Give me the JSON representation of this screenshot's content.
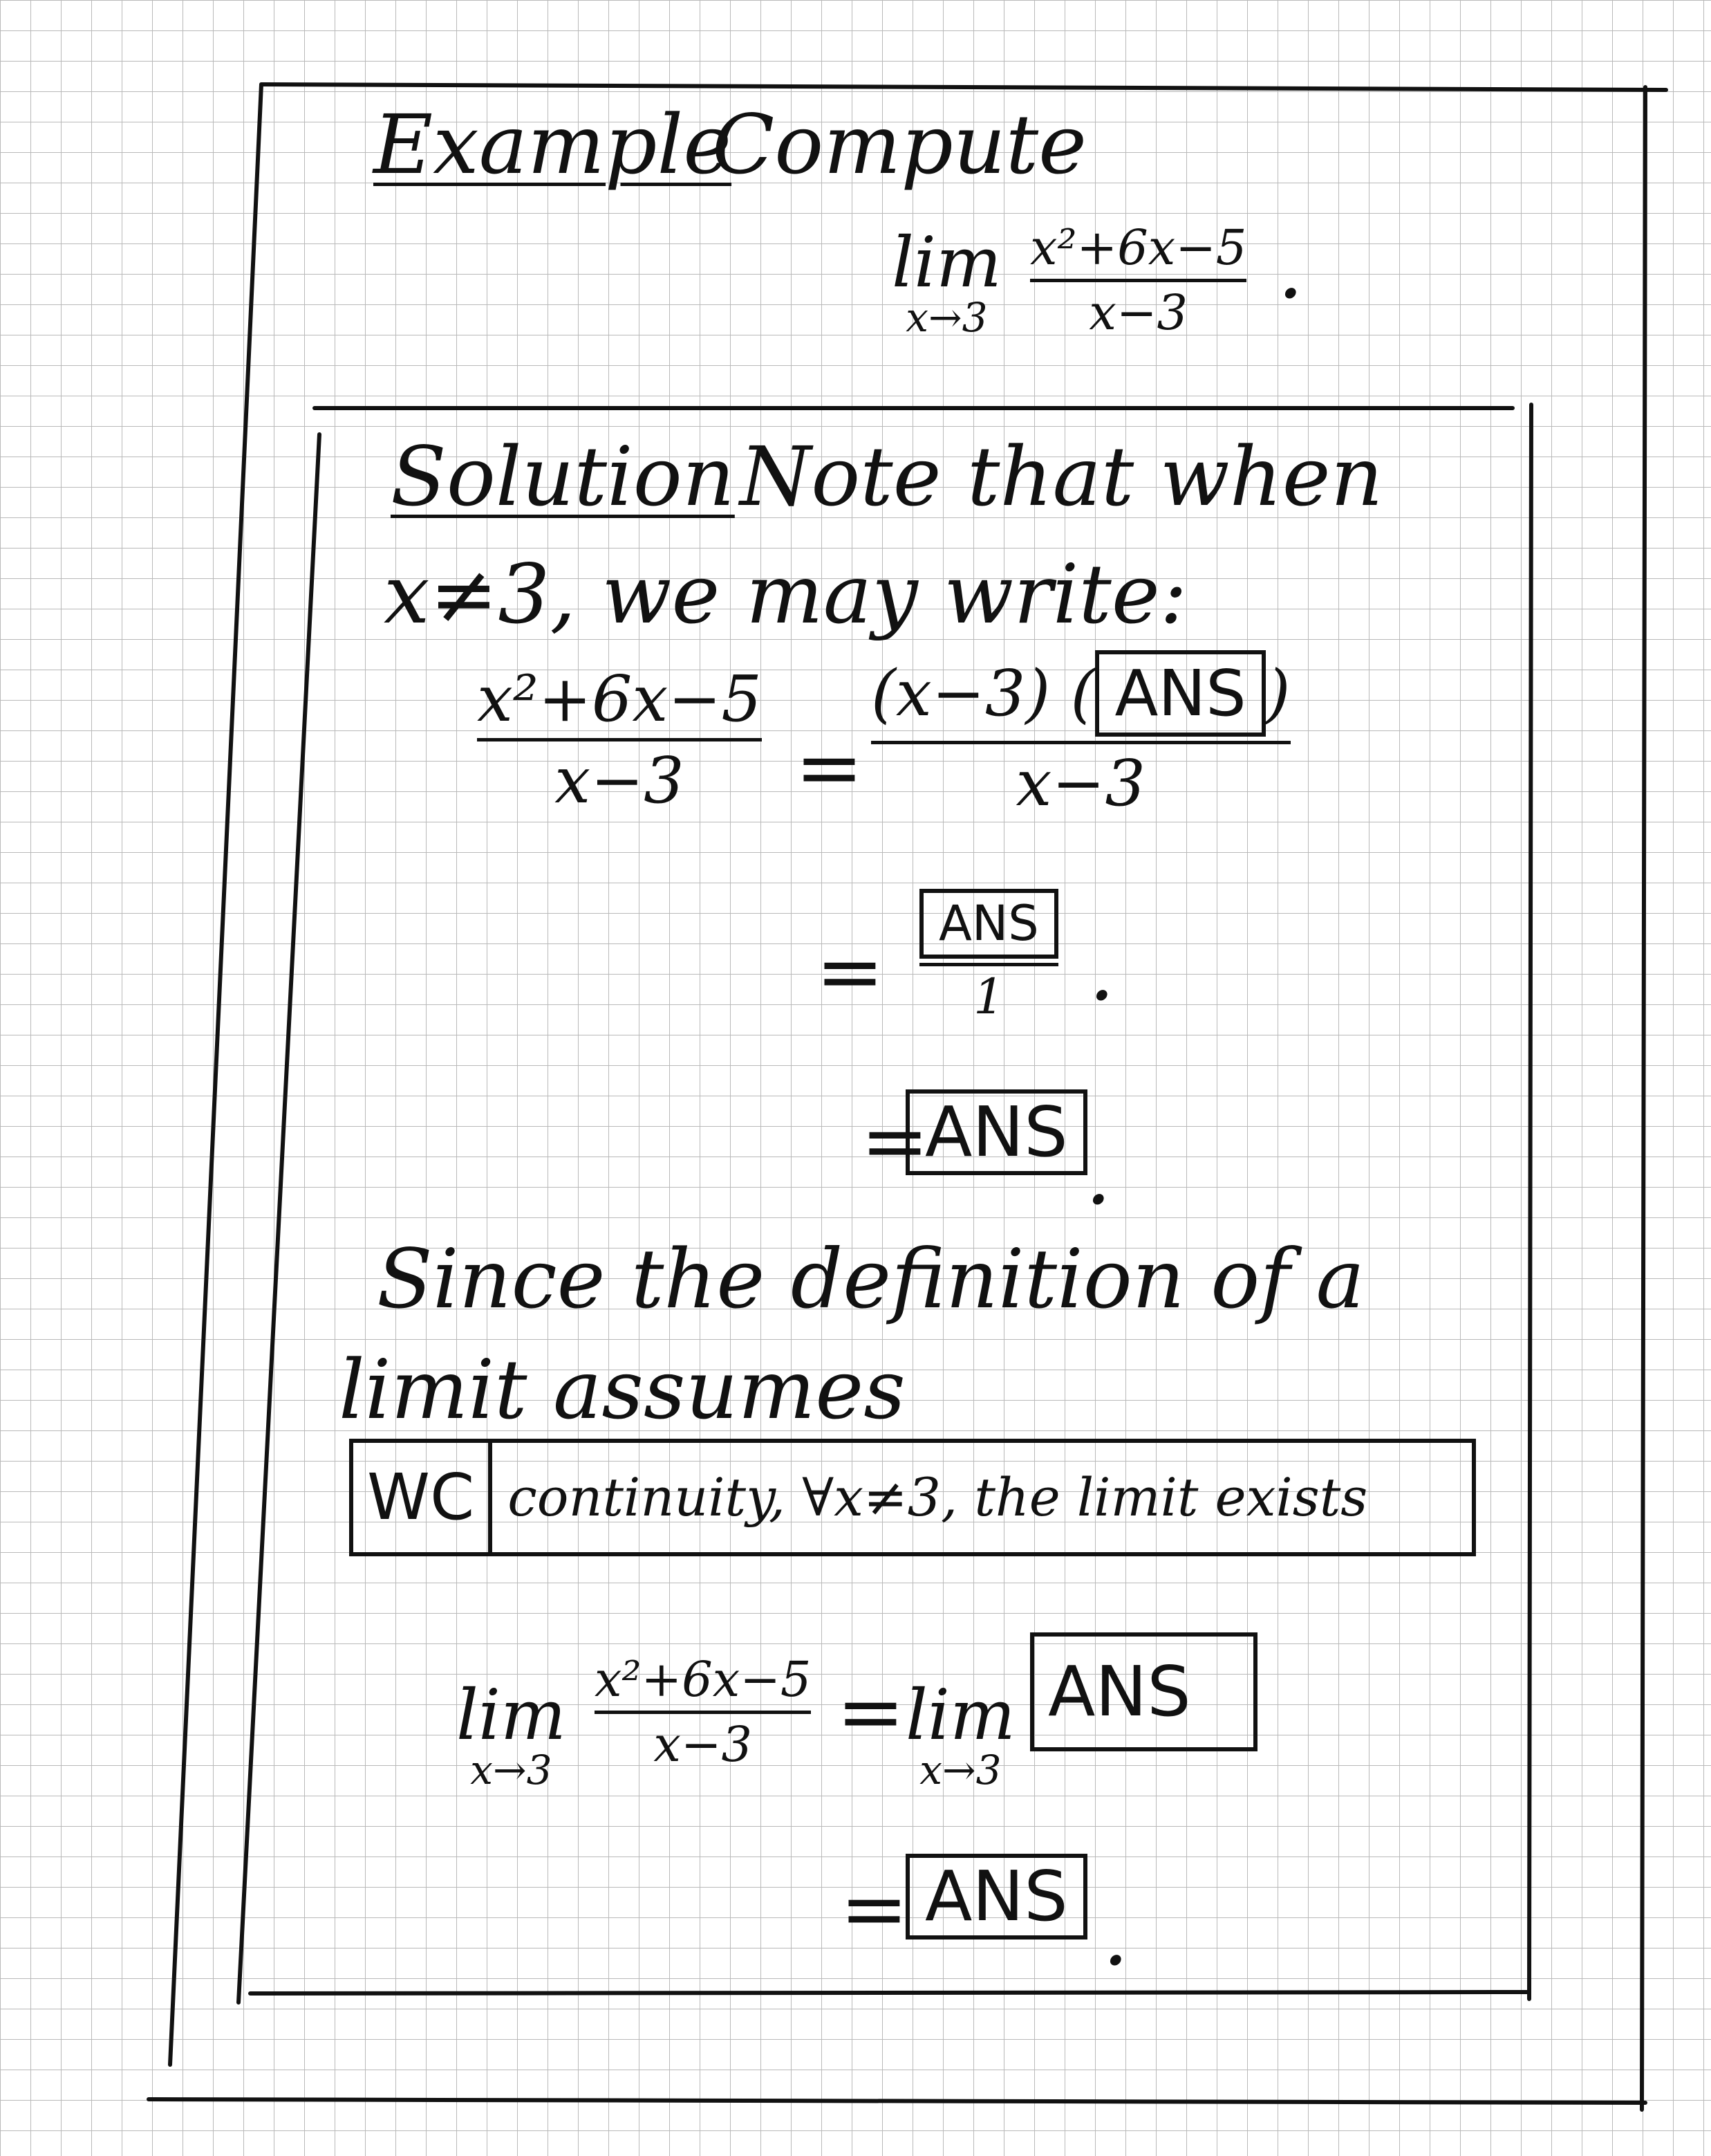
{
  "example": {
    "label": "Example",
    "instruction": "Compute",
    "lim_word": "lim",
    "lim_sub": "x→3",
    "numerator": "x²+6x−5",
    "denominator": "x−3",
    "period": "."
  },
  "solution": {
    "label": "Solution",
    "line1": "Note that when",
    "line2": "x≠3, we may write:",
    "step1": {
      "lhs_num": "x²+6x−5",
      "lhs_den": "x−3",
      "eq": "=",
      "rhs_num_prefix": "(x−3) (",
      "rhs_num_box": "ANS",
      "rhs_num_suffix": ")",
      "rhs_den": "x−3"
    },
    "step2": {
      "eq": "=",
      "num_box": "ANS",
      "den": "1",
      "period": "."
    },
    "step3": {
      "eq": "=",
      "box": "ANS",
      "period": "."
    },
    "since_line1": "Since the definition of a",
    "since_line2": "limit assumes",
    "assume_box_left": "WC",
    "assume_box_right": "continuity, ∀x≠3, the limit exists",
    "final": {
      "lim_word": "lim",
      "lim_sub": "x→3",
      "num": "x²+6x−5",
      "den": "x−3",
      "eq": "=",
      "rhs_lim_word": "lim",
      "rhs_lim_sub": "x→3",
      "rhs_box": "ANS",
      "eq2": "=",
      "answer_box": "ANS",
      "period": "."
    }
  }
}
